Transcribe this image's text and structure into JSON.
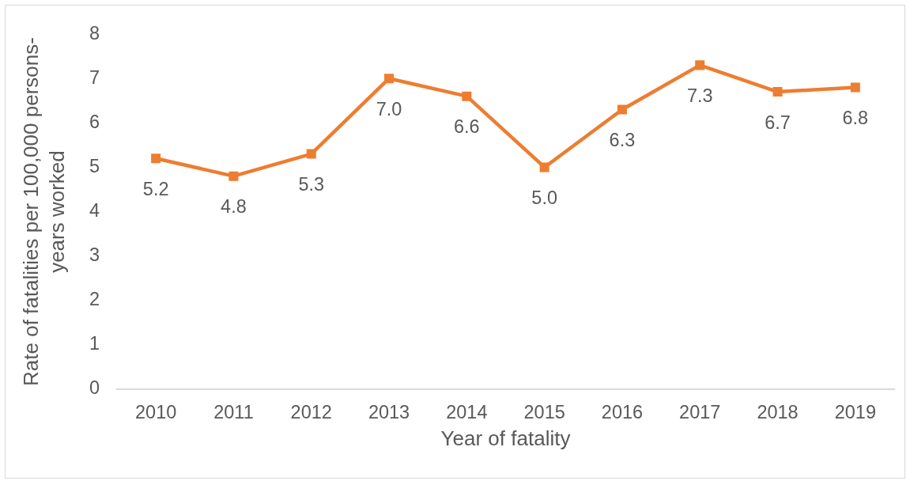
{
  "chart_data": {
    "type": "line",
    "xlabel": "Year of fatality",
    "ylabel": "Rate of fatalities per 100,000 persons-years worked",
    "categories": [
      "2010",
      "2011",
      "2012",
      "2013",
      "2014",
      "2015",
      "2016",
      "2017",
      "2018",
      "2019"
    ],
    "values": [
      5.2,
      4.8,
      5.3,
      7.0,
      6.6,
      5.0,
      6.3,
      7.3,
      6.7,
      6.8
    ],
    "value_labels": [
      "5.2",
      "4.8",
      "5.3",
      "7.0",
      "6.6",
      "5.0",
      "6.3",
      "7.3",
      "6.7",
      "6.8"
    ],
    "color": "#ed7d31",
    "ylim": [
      0,
      8
    ],
    "yticks": [
      0,
      1,
      2,
      3,
      4,
      5,
      6,
      7,
      8
    ],
    "grid": false,
    "legend": false,
    "marker": "square",
    "line_style": "solid"
  }
}
